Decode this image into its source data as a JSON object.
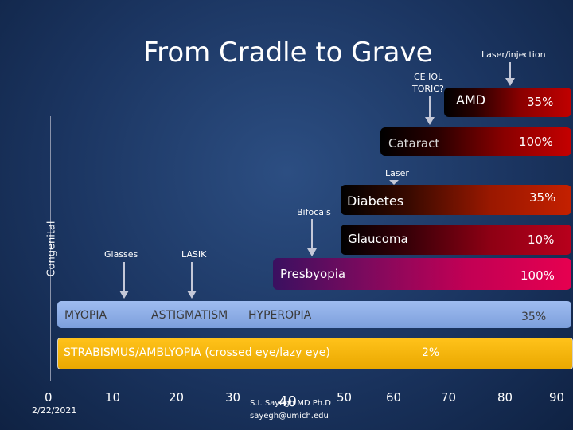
{
  "title": "From Cradle to Grave",
  "axis": {
    "vertical_label": "Congenital",
    "ticks": [
      "0",
      "10",
      "20",
      "30",
      "40",
      "50",
      "60",
      "70",
      "80",
      "90"
    ],
    "date": "2/22/2021"
  },
  "footer": {
    "author": "S.I. Sayegh MD Ph.D",
    "email": "sayegh@umich.edu"
  },
  "annotations": {
    "laser_injection": "Laser/injection",
    "ce_iol": "CE IOL",
    "toric": "TORIC?",
    "laser": "Laser",
    "bifocals": "Bifocals",
    "glasses": "Glasses",
    "lasik": "LASIK"
  },
  "bars": {
    "amd": {
      "label": "AMD",
      "percent": "35%"
    },
    "cataract": {
      "label": "Cataract",
      "percent": "100%"
    },
    "diabetes": {
      "label": "Diabetes",
      "percent": "35%"
    },
    "glaucoma": {
      "label": "Glaucoma",
      "percent": "10%"
    },
    "presbyopia": {
      "label": "Presbyopia",
      "percent": "100%"
    },
    "refractive": {
      "myopia": "MYOPIA",
      "astigmatism": "ASTIGMATISM",
      "hyperopia": "HYPEROPIA",
      "percent": "35%"
    },
    "strabismus": {
      "label": "STRABISMUS/AMBLYOPIA (crossed eye/lazy eye)",
      "percent": "2%"
    }
  },
  "colors": {
    "background": "#1b3561",
    "refractive_bar": "#8fb0e8",
    "strabismus_bar": "#f5b400",
    "presbyopia_bar": "#e0004f",
    "cataract_bar": "#c00000",
    "glaucoma_bar": "#b40018",
    "diabetes_bar": "#b81a00",
    "amd_bar": "#c00000",
    "arrow": "#c4c8d8"
  }
}
